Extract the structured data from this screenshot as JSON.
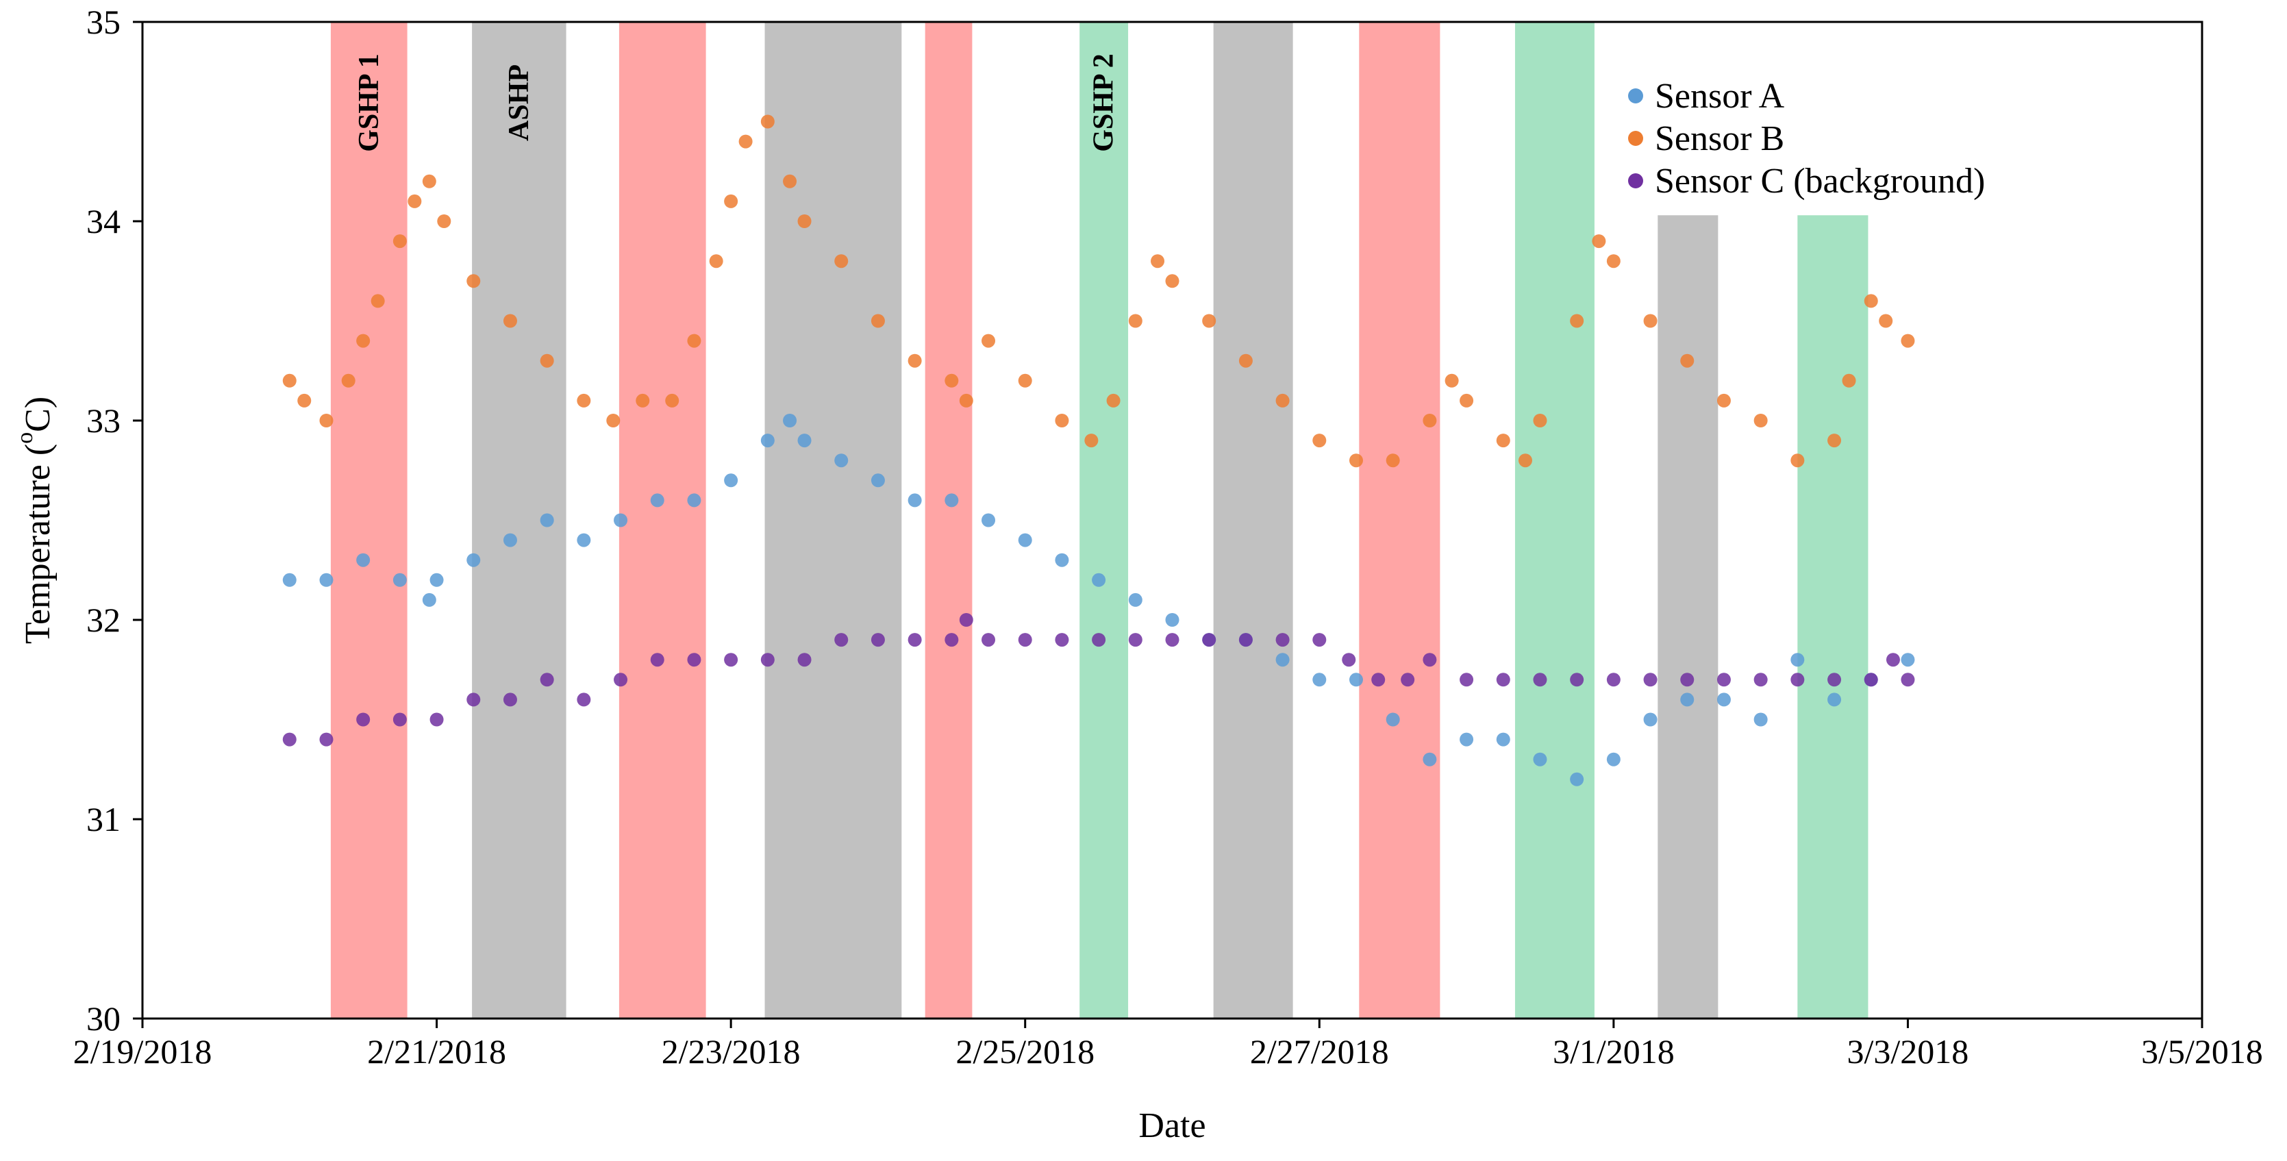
{
  "chart_data": {
    "type": "scatter",
    "title": "",
    "xlabel": "Date",
    "ylabel": "Temperature (oC)",
    "ylabel_parts": {
      "prefix": "Temperature (",
      "sup": "o",
      "suffix": "C)"
    },
    "xlim_days": [
      0,
      14
    ],
    "ylim": [
      30,
      35
    ],
    "x_ticks": [
      {
        "day": 0,
        "label": "2/19/2018"
      },
      {
        "day": 2,
        "label": "2/21/2018"
      },
      {
        "day": 4,
        "label": "2/23/2018"
      },
      {
        "day": 6,
        "label": "2/25/2018"
      },
      {
        "day": 8,
        "label": "2/27/2018"
      },
      {
        "day": 10,
        "label": "3/1/2018"
      },
      {
        "day": 12,
        "label": "3/3/2018"
      },
      {
        "day": 14,
        "label": "3/5/2018"
      }
    ],
    "y_ticks": [
      30,
      31,
      32,
      33,
      34,
      35
    ],
    "legend_position": "top-right",
    "colors": {
      "sensor_a": "#5B9BD5",
      "sensor_b": "#ED7D31",
      "sensor_c": "#7030A0",
      "gshp1_band": "#FF7F7F",
      "ashp_band": "#A6A6A6",
      "gshp2_band": "#7FD5A8"
    },
    "bands": [
      {
        "type": "GSHP 1",
        "label": "GSHP 1",
        "start": 1.28,
        "end": 1.8,
        "ymax": 35
      },
      {
        "type": "ASHP",
        "label": "ASHP",
        "start": 2.24,
        "end": 2.88,
        "ymax": 35
      },
      {
        "type": "GSHP 1",
        "label": "",
        "start": 3.24,
        "end": 3.83,
        "ymax": 35
      },
      {
        "type": "ASHP",
        "label": "",
        "start": 4.23,
        "end": 5.16,
        "ymax": 35
      },
      {
        "type": "GSHP 1",
        "label": "",
        "start": 5.32,
        "end": 5.64,
        "ymax": 35
      },
      {
        "type": "GSHP 2",
        "label": "GSHP 2",
        "start": 6.37,
        "end": 6.7,
        "ymax": 35
      },
      {
        "type": "ASHP",
        "label": "",
        "start": 7.28,
        "end": 7.82,
        "ymax": 35
      },
      {
        "type": "GSHP 1",
        "label": "",
        "start": 8.27,
        "end": 8.82,
        "ymax": 35
      },
      {
        "type": "GSHP 2",
        "label": "",
        "start": 9.33,
        "end": 9.87,
        "ymax": 35
      },
      {
        "type": "ASHP",
        "label": "",
        "start": 10.3,
        "end": 10.71,
        "ymax": 34.03
      },
      {
        "type": "GSHP 2",
        "label": "",
        "start": 11.25,
        "end": 11.73,
        "ymax": 34.03
      }
    ],
    "series": [
      {
        "name": "Sensor A",
        "key": "sensor_a",
        "points": [
          [
            1.0,
            32.2
          ],
          [
            1.25,
            32.2
          ],
          [
            1.5,
            32.3
          ],
          [
            1.75,
            32.2
          ],
          [
            1.95,
            32.1
          ],
          [
            2.0,
            32.2
          ],
          [
            2.25,
            32.3
          ],
          [
            2.5,
            32.4
          ],
          [
            2.75,
            32.5
          ],
          [
            3.0,
            32.4
          ],
          [
            3.25,
            32.5
          ],
          [
            3.5,
            32.6
          ],
          [
            3.75,
            32.6
          ],
          [
            4.0,
            32.7
          ],
          [
            4.25,
            32.9
          ],
          [
            4.4,
            33.0
          ],
          [
            4.5,
            32.9
          ],
          [
            4.75,
            32.8
          ],
          [
            5.0,
            32.7
          ],
          [
            5.25,
            32.6
          ],
          [
            5.5,
            32.6
          ],
          [
            5.75,
            32.5
          ],
          [
            6.0,
            32.4
          ],
          [
            6.25,
            32.3
          ],
          [
            6.5,
            32.2
          ],
          [
            6.75,
            32.1
          ],
          [
            7.0,
            32.0
          ],
          [
            7.25,
            31.9
          ],
          [
            7.5,
            31.9
          ],
          [
            7.75,
            31.8
          ],
          [
            8.0,
            31.7
          ],
          [
            8.25,
            31.7
          ],
          [
            8.5,
            31.5
          ],
          [
            8.75,
            31.3
          ],
          [
            9.0,
            31.4
          ],
          [
            9.25,
            31.4
          ],
          [
            9.5,
            31.3
          ],
          [
            9.75,
            31.2
          ],
          [
            10.0,
            31.3
          ],
          [
            10.25,
            31.5
          ],
          [
            10.5,
            31.6
          ],
          [
            10.75,
            31.6
          ],
          [
            11.0,
            31.5
          ],
          [
            11.25,
            31.8
          ],
          [
            11.5,
            31.6
          ],
          [
            11.75,
            31.7
          ],
          [
            12.0,
            31.8
          ]
        ]
      },
      {
        "name": "Sensor B",
        "key": "sensor_b",
        "points": [
          [
            1.0,
            33.2
          ],
          [
            1.1,
            33.1
          ],
          [
            1.25,
            33.0
          ],
          [
            1.4,
            33.2
          ],
          [
            1.5,
            33.4
          ],
          [
            1.6,
            33.6
          ],
          [
            1.75,
            33.9
          ],
          [
            1.85,
            34.1
          ],
          [
            1.95,
            34.2
          ],
          [
            2.05,
            34.0
          ],
          [
            2.25,
            33.7
          ],
          [
            2.5,
            33.5
          ],
          [
            2.75,
            33.3
          ],
          [
            3.0,
            33.1
          ],
          [
            3.2,
            33.0
          ],
          [
            3.4,
            33.1
          ],
          [
            3.6,
            33.1
          ],
          [
            3.75,
            33.4
          ],
          [
            3.9,
            33.8
          ],
          [
            4.0,
            34.1
          ],
          [
            4.1,
            34.4
          ],
          [
            4.25,
            34.5
          ],
          [
            4.4,
            34.2
          ],
          [
            4.5,
            34.0
          ],
          [
            4.75,
            33.8
          ],
          [
            5.0,
            33.5
          ],
          [
            5.25,
            33.3
          ],
          [
            5.5,
            33.2
          ],
          [
            5.6,
            33.1
          ],
          [
            5.75,
            33.4
          ],
          [
            6.0,
            33.2
          ],
          [
            6.25,
            33.0
          ],
          [
            6.45,
            32.9
          ],
          [
            6.6,
            33.1
          ],
          [
            6.75,
            33.5
          ],
          [
            6.9,
            33.8
          ],
          [
            7.0,
            33.7
          ],
          [
            7.25,
            33.5
          ],
          [
            7.5,
            33.3
          ],
          [
            7.75,
            33.1
          ],
          [
            8.0,
            32.9
          ],
          [
            8.25,
            32.8
          ],
          [
            8.5,
            32.8
          ],
          [
            8.75,
            33.0
          ],
          [
            8.9,
            33.2
          ],
          [
            9.0,
            33.1
          ],
          [
            9.25,
            32.9
          ],
          [
            9.4,
            32.8
          ],
          [
            9.5,
            33.0
          ],
          [
            9.75,
            33.5
          ],
          [
            9.9,
            33.9
          ],
          [
            10.0,
            33.8
          ],
          [
            10.25,
            33.5
          ],
          [
            10.5,
            33.3
          ],
          [
            10.75,
            33.1
          ],
          [
            11.0,
            33.0
          ],
          [
            11.25,
            32.8
          ],
          [
            11.5,
            32.9
          ],
          [
            11.6,
            33.2
          ],
          [
            11.75,
            33.6
          ],
          [
            11.85,
            33.5
          ],
          [
            12.0,
            33.4
          ]
        ]
      },
      {
        "name": "Sensor C (background)",
        "key": "sensor_c",
        "points": [
          [
            1.0,
            31.4
          ],
          [
            1.25,
            31.4
          ],
          [
            1.5,
            31.5
          ],
          [
            1.75,
            31.5
          ],
          [
            2.0,
            31.5
          ],
          [
            2.25,
            31.6
          ],
          [
            2.5,
            31.6
          ],
          [
            2.75,
            31.7
          ],
          [
            3.0,
            31.6
          ],
          [
            3.25,
            31.7
          ],
          [
            3.5,
            31.8
          ],
          [
            3.75,
            31.8
          ],
          [
            4.0,
            31.8
          ],
          [
            4.25,
            31.8
          ],
          [
            4.5,
            31.8
          ],
          [
            4.75,
            31.9
          ],
          [
            5.0,
            31.9
          ],
          [
            5.25,
            31.9
          ],
          [
            5.5,
            31.9
          ],
          [
            5.6,
            32.0
          ],
          [
            5.75,
            31.9
          ],
          [
            6.0,
            31.9
          ],
          [
            6.25,
            31.9
          ],
          [
            6.5,
            31.9
          ],
          [
            6.75,
            31.9
          ],
          [
            7.0,
            31.9
          ],
          [
            7.25,
            31.9
          ],
          [
            7.5,
            31.9
          ],
          [
            7.75,
            31.9
          ],
          [
            8.0,
            31.9
          ],
          [
            8.2,
            31.8
          ],
          [
            8.4,
            31.7
          ],
          [
            8.6,
            31.7
          ],
          [
            8.75,
            31.8
          ],
          [
            9.0,
            31.7
          ],
          [
            9.25,
            31.7
          ],
          [
            9.5,
            31.7
          ],
          [
            9.75,
            31.7
          ],
          [
            10.0,
            31.7
          ],
          [
            10.25,
            31.7
          ],
          [
            10.5,
            31.7
          ],
          [
            10.75,
            31.7
          ],
          [
            11.0,
            31.7
          ],
          [
            11.25,
            31.7
          ],
          [
            11.5,
            31.7
          ],
          [
            11.75,
            31.7
          ],
          [
            11.9,
            31.8
          ],
          [
            12.0,
            31.7
          ]
        ]
      }
    ]
  }
}
